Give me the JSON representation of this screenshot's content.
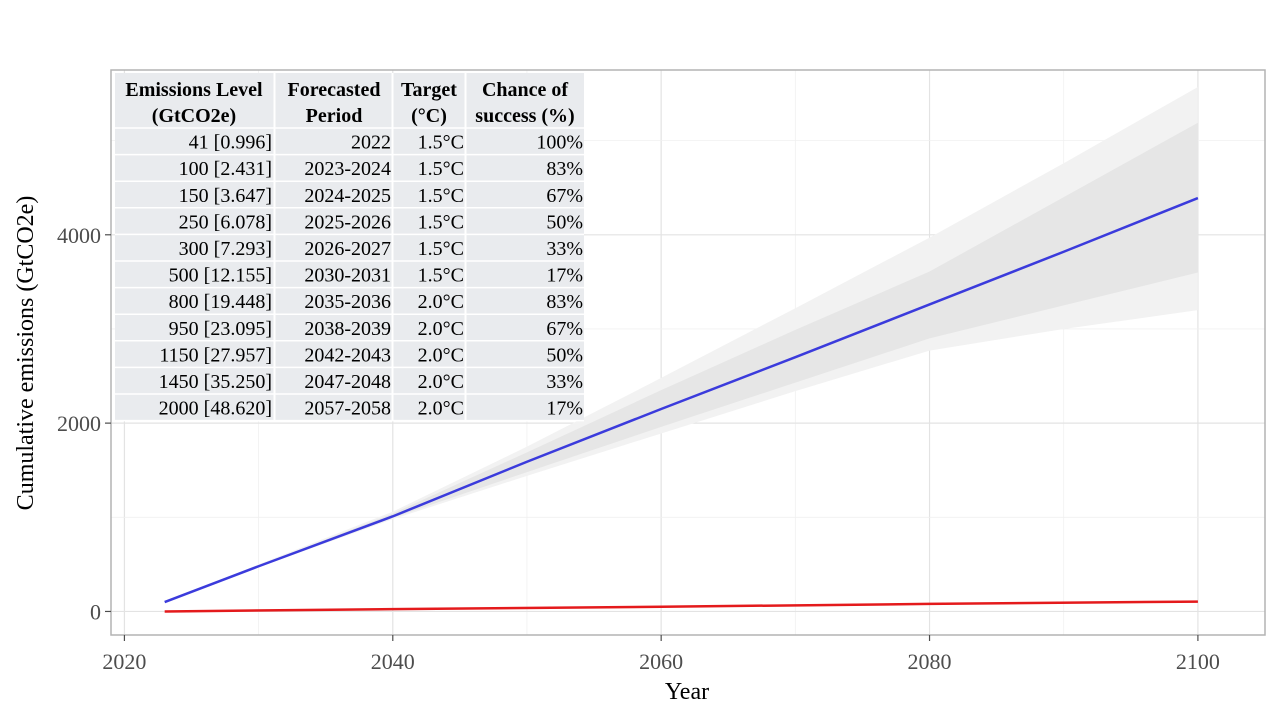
{
  "chart_data": {
    "type": "line",
    "title": "",
    "xlabel": "Year",
    "ylabel": "Cumulative emissions (GtCO2e)",
    "xlim": [
      2019,
      2105
    ],
    "ylim": [
      -250,
      5750
    ],
    "x_ticks": [
      2020,
      2040,
      2060,
      2080,
      2100
    ],
    "y_ticks": [
      0,
      2000,
      4000
    ],
    "grid": true,
    "legend": "none",
    "series": [
      {
        "color": "#3b3bdc",
        "x": [
          2023,
          2030,
          2040,
          2050,
          2060,
          2070,
          2080,
          2090,
          2100
        ],
        "y": [
          100,
          480,
          1010,
          1590,
          2150,
          2700,
          3260,
          3820,
          4390
        ]
      },
      {
        "color": "#e41a1c",
        "x": [
          2023,
          2040,
          2060,
          2080,
          2100
        ],
        "y": [
          0,
          25,
          50,
          80,
          105
        ]
      }
    ],
    "bands": [
      {
        "color": "#f2f2f2",
        "x": [
          2023,
          2030,
          2040,
          2050,
          2060,
          2070,
          2080,
          2090,
          2100
        ],
        "lower": [
          100,
          470,
          980,
          1440,
          1890,
          2340,
          2770,
          3000,
          3200
        ],
        "upper": [
          100,
          500,
          1060,
          1750,
          2480,
          3220,
          3970,
          4760,
          5570
        ]
      },
      {
        "color": "#e6e6e6",
        "x": [
          2023,
          2030,
          2040,
          2050,
          2060,
          2070,
          2080,
          2090,
          2100
        ],
        "lower": [
          100,
          475,
          995,
          1480,
          1960,
          2430,
          2900,
          3250,
          3600
        ],
        "upper": [
          100,
          490,
          1040,
          1690,
          2350,
          2990,
          3610,
          4400,
          5190
        ]
      }
    ],
    "table": {
      "header_line1": [
        "Emissions  Level",
        "Forecasted",
        "Target",
        "Chance of"
      ],
      "header_line2": [
        "(GtCO2e)",
        "Period",
        "(°C)",
        "success (%)"
      ],
      "rows": [
        [
          "41 [0.996]",
          "2022",
          "1.5°C",
          "100%"
        ],
        [
          "100 [2.431]",
          "2023-2024",
          "1.5°C",
          "83%"
        ],
        [
          "150 [3.647]",
          "2024-2025",
          "1.5°C",
          "67%"
        ],
        [
          "250 [6.078]",
          "2025-2026",
          "1.5°C",
          "50%"
        ],
        [
          "300 [7.293]",
          "2026-2027",
          "1.5°C",
          "33%"
        ],
        [
          "500 [12.155]",
          "2030-2031",
          "1.5°C",
          "17%"
        ],
        [
          "800 [19.448]",
          "2035-2036",
          "2.0°C",
          "83%"
        ],
        [
          "950 [23.095]",
          "2038-2039",
          "2.0°C",
          "67%"
        ],
        [
          "1150 [27.957]",
          "2042-2043",
          "2.0°C",
          "50%"
        ],
        [
          "1450 [35.250]",
          "2047-2048",
          "2.0°C",
          "33%"
        ],
        [
          "2000 [48.620]",
          "2057-2058",
          "2.0°C",
          "17%"
        ]
      ]
    }
  }
}
